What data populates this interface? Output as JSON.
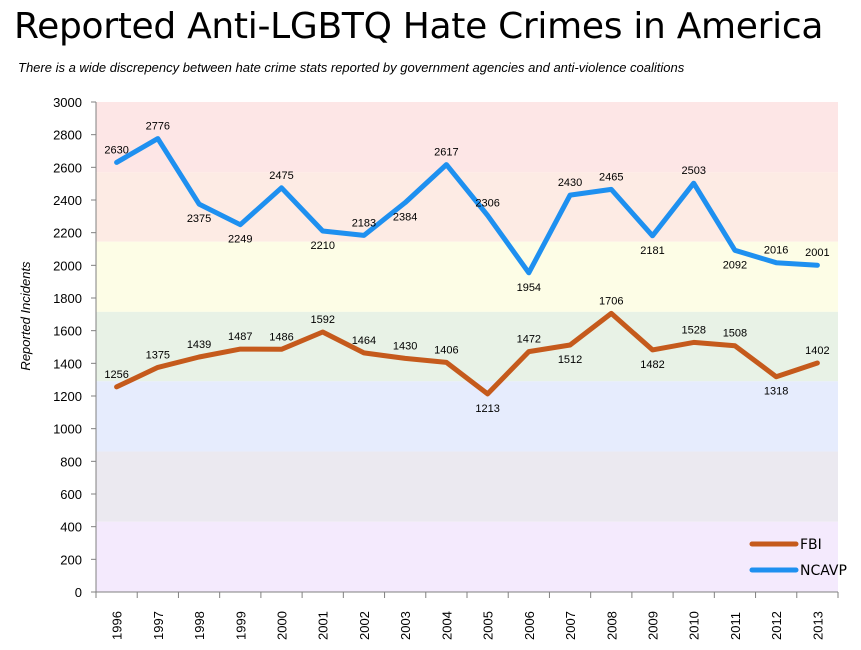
{
  "chart_data": {
    "type": "line",
    "title": "Reported Anti-LGBTQ Hate Crimes in America",
    "subtitle": "There is a wide discrepency between hate crime stats reported by government agencies and anti-violence coalitions",
    "xlabel": "",
    "ylabel": "Reported Incidents",
    "ylim": [
      0,
      3000
    ],
    "yticks": [
      0,
      200,
      400,
      600,
      800,
      1000,
      1200,
      1400,
      1600,
      1800,
      2000,
      2200,
      2400,
      2600,
      2800,
      3000
    ],
    "categories": [
      "1996",
      "1997",
      "1998",
      "1999",
      "2000",
      "2001",
      "2002",
      "2003",
      "2004",
      "2005",
      "2006",
      "2007",
      "2008",
      "2009",
      "2010",
      "2011",
      "2012",
      "2013"
    ],
    "series": [
      {
        "name": "FBI",
        "color": "#c55a1c",
        "values": [
          1256,
          1375,
          1439,
          1487,
          1486,
          1592,
          1464,
          1430,
          1406,
          1213,
          1472,
          1512,
          1706,
          1482,
          1528,
          1508,
          1318,
          1402
        ],
        "labels": [
          "1256",
          "1375",
          "1439",
          "1487",
          "1486",
          "1592",
          "1464",
          "1430",
          "1406",
          "1213",
          "1472",
          "1512",
          "1706",
          "1482",
          "1528",
          "1508",
          "1318",
          "1402"
        ],
        "label_pos": [
          "above",
          "above",
          "above",
          "above",
          "above",
          "above",
          "above",
          "above",
          "above",
          "below",
          "above",
          "below",
          "above",
          "below",
          "above",
          "above",
          "below",
          "above"
        ]
      },
      {
        "name": "NCAVP",
        "color": "#1e90f0",
        "values": [
          2630,
          2776,
          2375,
          2249,
          2475,
          2210,
          2183,
          2384,
          2617,
          2306,
          1954,
          2430,
          2465,
          2181,
          2503,
          2092,
          2016,
          2001
        ],
        "labels": [
          "2630",
          "2776",
          "2375",
          "2249",
          "2475",
          "2210",
          "2183",
          "2384",
          "2617",
          "2306",
          "1954",
          "2430",
          "2465",
          "2181",
          "2503",
          "2092",
          "2016",
          "2001"
        ],
        "label_pos": [
          "above",
          "above",
          "below",
          "below",
          "above",
          "below",
          "above",
          "below",
          "above",
          "above",
          "below",
          "above",
          "above",
          "below",
          "above",
          "below",
          "above",
          "above"
        ]
      }
    ],
    "bands": [
      {
        "from": 2570,
        "to": 3000,
        "color": "#fde6e6"
      },
      {
        "from": 2145,
        "to": 2570,
        "color": "#fdebe4"
      },
      {
        "from": 1715,
        "to": 2145,
        "color": "#fdfde6"
      },
      {
        "from": 1290,
        "to": 1715,
        "color": "#e8f2e6"
      },
      {
        "from": 860,
        "to": 1290,
        "color": "#e6ecfd"
      },
      {
        "from": 430,
        "to": 860,
        "color": "#ebe9f0"
      },
      {
        "from": 0,
        "to": 430,
        "color": "#f4eafd"
      }
    ],
    "legend": "bottom-right",
    "grid": false
  }
}
